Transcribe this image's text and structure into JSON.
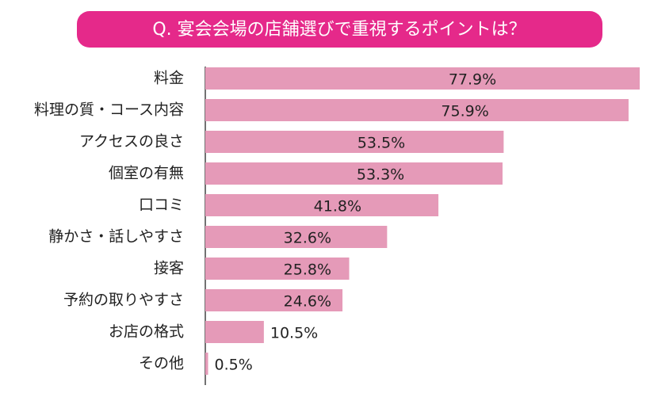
{
  "chart_data": {
    "type": "bar",
    "orientation": "horizontal",
    "title": "Q. 宴会会場の店舗選びで重視するポイントは？",
    "categories": [
      "料金",
      "料理の質・コース内容",
      "アクセスの良さ",
      "個室の有無",
      "口コミ",
      "静かさ・話しやすさ",
      "接客",
      "予約の取りやすさ",
      "お店の格式",
      "その他"
    ],
    "values": [
      77.9,
      75.9,
      53.5,
      53.3,
      41.8,
      32.6,
      25.8,
      24.6,
      10.5,
      0.5
    ],
    "value_labels": [
      "77.9%",
      "75.9%",
      "53.5%",
      "53.3%",
      "41.8%",
      "32.6%",
      "25.8%",
      "24.6%",
      "10.5%",
      "0.5%"
    ],
    "color": "#e59ab8",
    "title_color": "#e5298a"
  }
}
